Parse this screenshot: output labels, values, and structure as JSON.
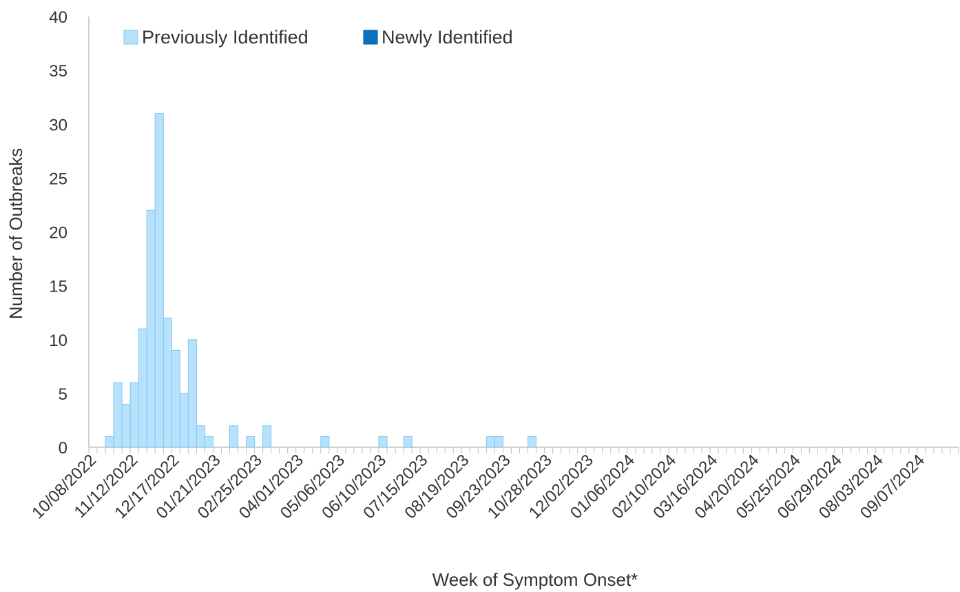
{
  "chart_data": {
    "type": "bar",
    "title": "",
    "xlabel": "Week of Symptom Onset*",
    "ylabel": "Number of Outbreaks",
    "ylim": [
      0,
      40
    ],
    "yticks": [
      0,
      5,
      10,
      15,
      20,
      25,
      30,
      35,
      40
    ],
    "grid": false,
    "legend_position": "top-left",
    "stacked": true,
    "x_start_week": "10/08/2022",
    "week_count": 105,
    "x_tick_labels": [
      "10/08/2022",
      "11/12/2022",
      "12/17/2022",
      "01/21/2023",
      "02/25/2023",
      "04/01/2023",
      "05/06/2023",
      "06/10/2023",
      "07/15/2023",
      "08/19/2023",
      "09/23/2023",
      "10/28/2023",
      "12/02/2023",
      "01/06/2024",
      "02/10/2024",
      "03/16/2024",
      "04/20/2024",
      "05/25/2024",
      "06/29/2024",
      "08/03/2024",
      "09/07/2024"
    ],
    "x_tick_label_week_index": [
      0,
      5,
      10,
      15,
      20,
      25,
      30,
      35,
      40,
      45,
      50,
      55,
      60,
      65,
      70,
      75,
      80,
      85,
      90,
      95,
      100
    ],
    "weeks": [
      "10/08/2022",
      "10/15/2022",
      "10/22/2022",
      "10/29/2022",
      "11/05/2022",
      "11/12/2022",
      "11/19/2022",
      "11/26/2022",
      "12/03/2022",
      "12/10/2022",
      "12/17/2022",
      "12/24/2022",
      "12/31/2022",
      "01/07/2023",
      "01/14/2023",
      "01/21/2023",
      "01/28/2023",
      "02/04/2023",
      "02/11/2023",
      "02/18/2023",
      "02/25/2023",
      "03/04/2023",
      "03/11/2023",
      "03/18/2023",
      "03/25/2023",
      "04/01/2023",
      "04/08/2023",
      "04/15/2023",
      "04/22/2023",
      "04/29/2023",
      "05/06/2023",
      "05/13/2023",
      "05/20/2023",
      "05/27/2023",
      "06/03/2023",
      "06/10/2023",
      "06/17/2023",
      "06/24/2023",
      "07/01/2023",
      "07/08/2023",
      "07/15/2023",
      "07/22/2023",
      "07/29/2023",
      "08/05/2023",
      "08/12/2023",
      "08/19/2023",
      "08/26/2023",
      "09/02/2023",
      "09/09/2023",
      "09/16/2023",
      "09/23/2023",
      "09/30/2023",
      "10/07/2023",
      "10/14/2023",
      "10/21/2023",
      "10/28/2023",
      "11/04/2023",
      "11/11/2023",
      "11/18/2023",
      "11/25/2023",
      "12/02/2023",
      "12/09/2023",
      "12/16/2023",
      "12/23/2023",
      "12/30/2023",
      "01/06/2024",
      "01/13/2024",
      "01/20/2024",
      "01/27/2024",
      "02/03/2024",
      "02/10/2024",
      "02/17/2024",
      "02/24/2024",
      "03/02/2024",
      "03/09/2024",
      "03/16/2024",
      "03/23/2024",
      "03/30/2024",
      "04/06/2024",
      "04/13/2024",
      "04/20/2024",
      "04/27/2024",
      "05/04/2024",
      "05/11/2024",
      "05/18/2024",
      "05/25/2024",
      "06/01/2024",
      "06/08/2024",
      "06/15/2024",
      "06/22/2024",
      "06/29/2024",
      "07/06/2024",
      "07/13/2024",
      "07/20/2024",
      "07/27/2024",
      "08/03/2024",
      "08/10/2024",
      "08/17/2024",
      "08/24/2024",
      "08/31/2024",
      "09/07/2024",
      "09/14/2024",
      "09/21/2024",
      "09/28/2024",
      "10/05/2024"
    ],
    "series": [
      {
        "name": "Previously Identified",
        "color": "#b8e2fb",
        "border_color": "#7cc7f2",
        "values": [
          0,
          0,
          1,
          6,
          4,
          6,
          11,
          22,
          31,
          12,
          9,
          5,
          10,
          2,
          1,
          0,
          0,
          2,
          0,
          1,
          0,
          2,
          0,
          0,
          0,
          0,
          0,
          0,
          1,
          0,
          0,
          0,
          0,
          0,
          0,
          1,
          0,
          0,
          1,
          0,
          0,
          0,
          0,
          0,
          0,
          0,
          0,
          0,
          1,
          1,
          0,
          0,
          0,
          1,
          0,
          0,
          0,
          0,
          0,
          0,
          0,
          0,
          0,
          0,
          0,
          0,
          0,
          0,
          0,
          0,
          0,
          0,
          0,
          0,
          0,
          0,
          0,
          0,
          0,
          0,
          0,
          0,
          0,
          0,
          0,
          0,
          0,
          0,
          0,
          0,
          0,
          0,
          0,
          0,
          0,
          0,
          0,
          0,
          0,
          0,
          0,
          0,
          0,
          0,
          0
        ]
      },
      {
        "name": "Newly Identified",
        "color": "#0a72bf",
        "border_color": "#075a98",
        "values": [
          0,
          0,
          0,
          0,
          0,
          0,
          0,
          0,
          0,
          0,
          0,
          0,
          0,
          0,
          0,
          0,
          0,
          0,
          0,
          0,
          0,
          0,
          0,
          0,
          0,
          0,
          0,
          0,
          0,
          0,
          0,
          0,
          0,
          0,
          0,
          0,
          0,
          0,
          0,
          0,
          0,
          0,
          0,
          0,
          0,
          0,
          0,
          0,
          0,
          0,
          0,
          0,
          0,
          0,
          0,
          0,
          0,
          0,
          0,
          0,
          0,
          0,
          0,
          0,
          0,
          0,
          0,
          0,
          0,
          0,
          0,
          0,
          0,
          0,
          0,
          0,
          0,
          0,
          0,
          0,
          0,
          0,
          0,
          0,
          0,
          0,
          0,
          0,
          0,
          0,
          0,
          0,
          0,
          0,
          0,
          0,
          0,
          0,
          0,
          0,
          0,
          0,
          0,
          0,
          0
        ]
      }
    ]
  }
}
